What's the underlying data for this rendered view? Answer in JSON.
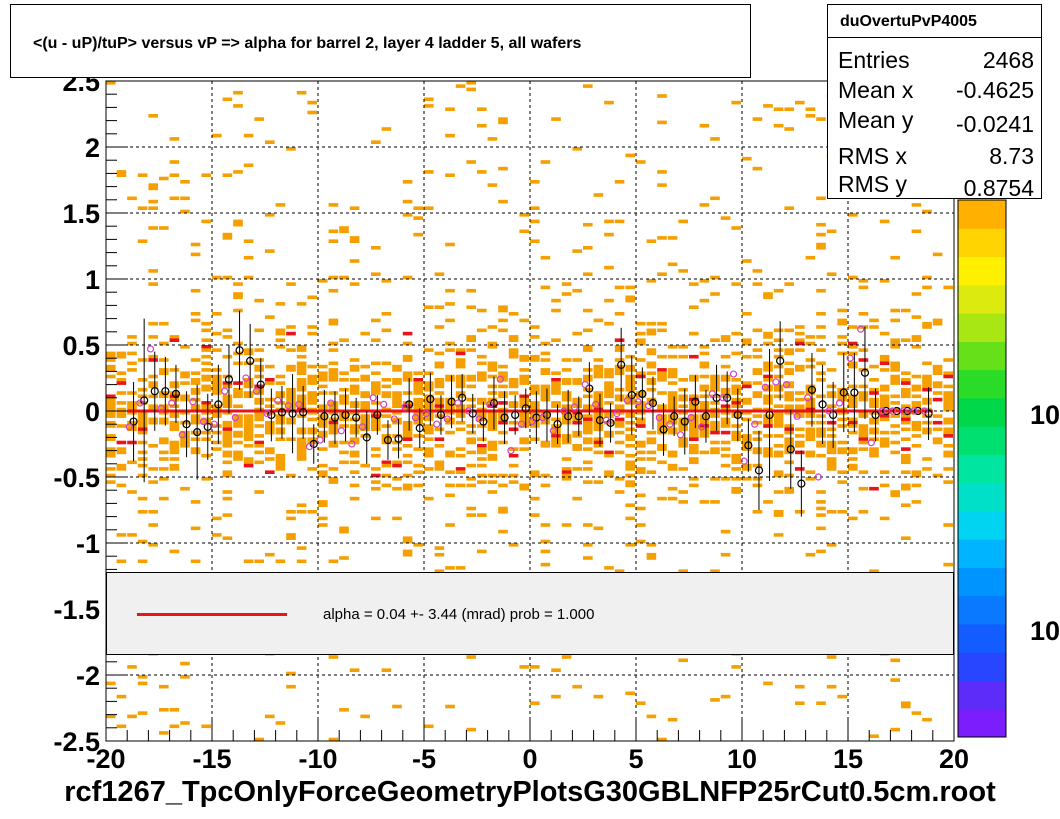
{
  "title": "<(u - uP)/tuP> versus   vP => alpha for barrel 2, layer 4 ladder 5, all wafers",
  "stats": {
    "name": "duOvertuPvP4005",
    "rows": [
      {
        "label": "Entries",
        "value": "2468"
      },
      {
        "label": "Mean x",
        "value": "-0.4625"
      },
      {
        "label": "Mean y",
        "value": "-0.0241"
      },
      {
        "label": "RMS x",
        "value": "8.73"
      },
      {
        "label": "RMS y",
        "value": "0.8754"
      }
    ]
  },
  "fit_legend": {
    "text": "alpha =    0.04 +-  3.44 (mrad) prob = 1.000"
  },
  "footer": "rcf1267_TpcOnlyForceGeometryPlotsG30GBLNFP25rCut0.5cm.root",
  "palette": {
    "labels": [
      "10",
      "10"
    ],
    "colors": [
      "#7b1dfc",
      "#5d2cf8",
      "#2846ff",
      "#135cff",
      "#0a78ff",
      "#0094ff",
      "#00b4ff",
      "#00d4f0",
      "#00e0c8",
      "#00e6a0",
      "#00e070",
      "#00d84a",
      "#2adc28",
      "#66e018",
      "#a8e614",
      "#dcea10",
      "#fff000",
      "#ffd400",
      "#ffb000"
    ]
  },
  "colors": {
    "fit_line": "#e8141a",
    "cell": "#f5a000",
    "cell_hot": "#e8141a",
    "open_marker": "#000000",
    "pink_marker": "#d040c8"
  },
  "chart_data": {
    "type": "scatter",
    "title": "<(u - uP)/tuP> versus   vP => alpha for barrel 2, layer 4 ladder 5, all wafers",
    "xlim": [
      -20,
      20
    ],
    "ylim": [
      -2.5,
      2.5
    ],
    "x_ticks": [
      "-20",
      "-15",
      "-10",
      "-5",
      "0",
      "5",
      "10",
      "15",
      "20"
    ],
    "y_ticks": [
      "-2.5",
      "-2",
      "-1.5",
      "-1",
      "-0.5",
      "0",
      "0.5",
      "1",
      "1.5",
      "2",
      "2.5"
    ],
    "grid": true,
    "fit": {
      "type": "line",
      "x": [
        -19,
        19
      ],
      "y": [
        0.0,
        0.0
      ],
      "label": "alpha =    0.04 +-  3.44 (mrad) prob = 1.000"
    },
    "series": [
      {
        "marker": "open-circle-black",
        "x": [
          -18.7,
          -18.2,
          -17.7,
          -17.2,
          -16.7,
          -16.2,
          -15.7,
          -15.2,
          -14.7,
          -14.2,
          -13.7,
          -13.2,
          -12.7,
          -12.2,
          -11.7,
          -11.2,
          -10.7,
          -10.2,
          -9.7,
          -9.2,
          -8.7,
          -8.2,
          -7.7,
          -7.2,
          -6.7,
          -6.2,
          -5.7,
          -5.2,
          -4.7,
          -4.2,
          -3.7,
          -3.2,
          -2.7,
          -2.2,
          -1.7,
          -1.2,
          -0.7,
          -0.2,
          0.3,
          0.8,
          1.3,
          1.8,
          2.3,
          2.8,
          3.3,
          3.8,
          4.3,
          4.8,
          5.3,
          5.8,
          6.3,
          6.8,
          7.3,
          7.8,
          8.3,
          8.8,
          9.3,
          9.8,
          10.3,
          10.8,
          11.3,
          11.8,
          12.3,
          12.8,
          13.3,
          13.8,
          14.3,
          14.8,
          15.3,
          15.8,
          16.3,
          16.8,
          17.3,
          17.8,
          18.3,
          18.8
        ],
        "y": [
          -0.08,
          0.08,
          0.15,
          0.15,
          0.13,
          -0.1,
          -0.16,
          -0.12,
          0.05,
          0.24,
          0.46,
          0.38,
          0.2,
          -0.03,
          -0.01,
          -0.02,
          -0.01,
          -0.25,
          -0.04,
          -0.05,
          -0.03,
          -0.05,
          -0.2,
          -0.03,
          -0.22,
          -0.21,
          0.05,
          -0.13,
          0.09,
          -0.03,
          0.07,
          0.1,
          -0.02,
          -0.08,
          0.06,
          -0.05,
          -0.03,
          0.02,
          -0.05,
          -0.03,
          -0.1,
          -0.04,
          -0.04,
          0.17,
          -0.07,
          -0.09,
          0.35,
          0.12,
          0.13,
          0.06,
          -0.14,
          -0.04,
          -0.08,
          0.07,
          -0.04,
          0.1,
          0.1,
          -0.03,
          -0.26,
          -0.45,
          -0.03,
          0.38,
          -0.29,
          -0.55,
          0.16,
          0.05,
          -0.03,
          0.14,
          0.14,
          0.29,
          -0.03,
          0.0,
          0.0,
          0.0,
          0.0,
          -0.02
        ],
        "yerr": [
          0.3,
          0.62,
          0.3,
          0.26,
          0.22,
          0.25,
          0.36,
          0.25,
          0.3,
          0.26,
          0.3,
          0.28,
          0.2,
          0.2,
          0.2,
          0.3,
          0.2,
          0.15,
          0.2,
          0.2,
          0.2,
          0.15,
          0.2,
          0.15,
          0.15,
          0.15,
          0.2,
          0.15,
          0.2,
          0.15,
          0.2,
          0.18,
          0.15,
          0.15,
          0.2,
          0.2,
          0.15,
          0.15,
          0.2,
          0.2,
          0.15,
          0.2,
          0.15,
          0.2,
          0.2,
          0.15,
          0.28,
          0.3,
          0.2,
          0.2,
          0.2,
          0.15,
          0.25,
          0.2,
          0.2,
          0.25,
          0.2,
          0.2,
          0.2,
          0.3,
          0.5,
          0.3,
          0.3,
          0.25,
          0.28,
          0.3,
          0.25,
          0.3,
          0.3,
          0.35,
          0.2,
          0.0,
          0.0,
          0.0,
          0.0,
          0.2
        ]
      },
      {
        "marker": "open-circle-pink",
        "x": [
          -18.9,
          -18.4,
          -17.9,
          -17.4,
          -16.9,
          -16.4,
          -15.9,
          -15.4,
          -14.9,
          -14.4,
          -13.9,
          -13.4,
          -12.9,
          -12.4,
          -11.9,
          -11.4,
          -10.9,
          -10.4,
          -9.9,
          -9.4,
          -8.9,
          -8.4,
          -7.9,
          -7.4,
          -6.9,
          -6.4,
          -5.9,
          -5.4,
          -4.9,
          -4.4,
          -3.9,
          -3.4,
          -2.9,
          -2.4,
          -1.9,
          -1.4,
          -0.9,
          -0.4,
          0.1,
          0.6,
          1.1,
          1.6,
          2.1,
          2.6,
          3.1,
          3.6,
          4.1,
          4.6,
          5.1,
          5.6,
          6.1,
          6.6,
          7.1,
          7.6,
          8.1,
          8.6,
          9.1,
          9.6,
          10.1,
          10.6,
          11.1,
          11.6,
          12.1,
          12.6,
          13.1,
          13.6,
          14.1,
          14.6,
          15.1,
          15.6,
          16.1,
          16.6,
          17.1,
          17.6,
          18.1,
          18.6
        ],
        "y": [
          -0.12,
          0.06,
          0.47,
          0.02,
          0.06,
          -0.18,
          0.07,
          -0.08,
          -0.1,
          0.15,
          -0.05,
          0.25,
          0.15,
          -0.02,
          0.08,
          0.04,
          0.05,
          -0.27,
          -0.22,
          0.06,
          -0.15,
          -0.25,
          -0.12,
          0.1,
          0.05,
          -0.06,
          0.03,
          -0.05,
          -0.02,
          -0.1,
          -0.06,
          0.06,
          0.0,
          -0.06,
          0.05,
          0.24,
          -0.3,
          -0.1,
          -0.08,
          -0.05,
          -0.15,
          0.0,
          0.03,
          0.2,
          0.05,
          -0.07,
          -0.02,
          0.08,
          0.07,
          0.04,
          -0.05,
          -0.1,
          -0.18,
          -0.05,
          -0.12,
          0.13,
          0.1,
          0.28,
          -0.38,
          -0.1,
          0.18,
          0.22,
          0.2,
          -0.04,
          0.1,
          -0.5,
          0.0,
          0.06,
          0.4,
          0.62,
          -0.24,
          0.0,
          0.0,
          0.0,
          0.0,
          0.0
        ]
      }
    ]
  }
}
